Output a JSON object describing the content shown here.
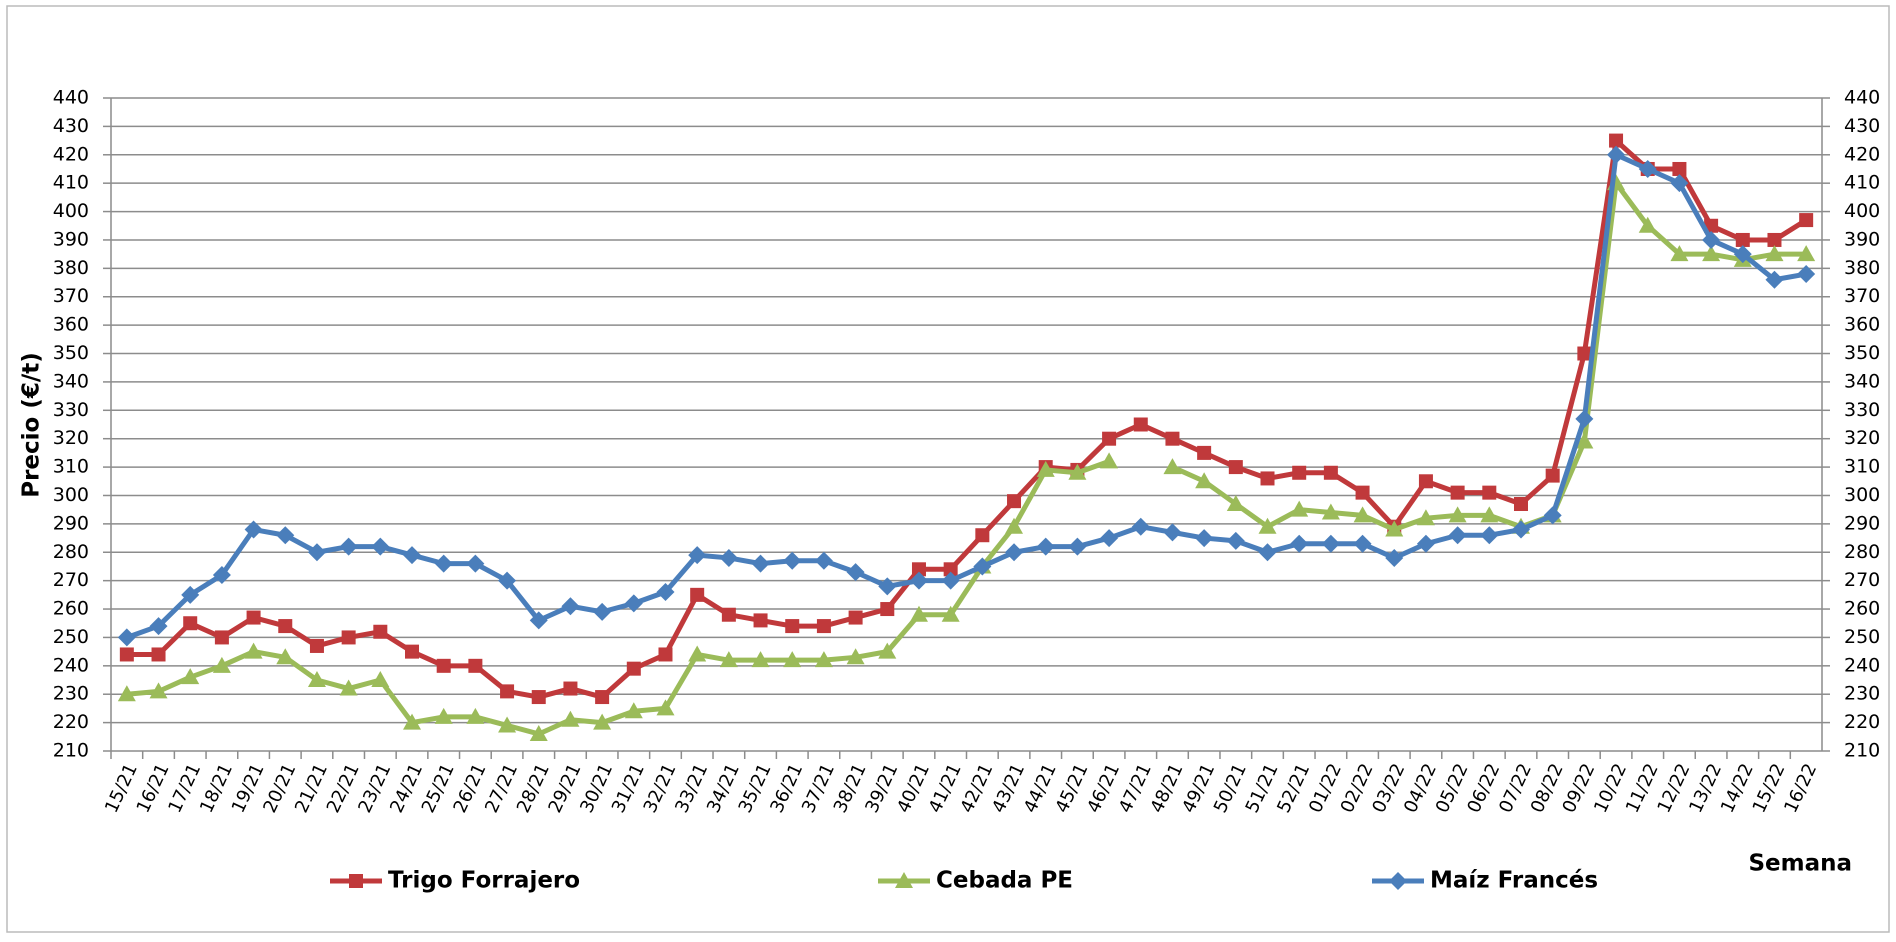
{
  "chart_data": {
    "type": "line",
    "y_label": "Precio (€/t)",
    "x_label": "Semana",
    "categories": [
      "15/21",
      "16/21",
      "17/21",
      "18/21",
      "19/21",
      "20/21",
      "21/21",
      "22/21",
      "23/21",
      "24/21",
      "25/21",
      "26/21",
      "27/21",
      "28/21",
      "29/21",
      "30/21",
      "31/21",
      "32/21",
      "33/21",
      "34/21",
      "35/21",
      "36/21",
      "37/21",
      "38/21",
      "39/21",
      "40/21",
      "41/21",
      "42/21",
      "43/21",
      "44/21",
      "45/21",
      "46/21",
      "47/21",
      "48/21",
      "49/21",
      "50/21",
      "51/21",
      "52/21",
      "01/22",
      "02/22",
      "03/22",
      "04/22",
      "05/22",
      "06/22",
      "07/22",
      "08/22",
      "09/22",
      "10/22",
      "11/22",
      "12/22",
      "13/22",
      "14/22",
      "15/22",
      "16/22"
    ],
    "series": [
      {
        "name": "Trigo Forrajero",
        "color": "#c0393b",
        "marker": "square",
        "values": [
          244,
          244,
          255,
          250,
          257,
          254,
          247,
          250,
          252,
          245,
          240,
          240,
          231,
          229,
          232,
          229,
          239,
          244,
          265,
          258,
          256,
          254,
          254,
          257,
          260,
          274,
          274,
          286,
          298,
          310,
          309,
          320,
          325,
          320,
          315,
          310,
          306,
          308,
          308,
          301,
          289,
          305,
          301,
          301,
          297,
          307,
          350,
          425,
          415,
          415,
          395,
          390,
          390,
          397
        ]
      },
      {
        "name": "Cebada PE",
        "color": "#9bbb59",
        "marker": "triangle",
        "values": [
          230,
          231,
          236,
          240,
          245,
          243,
          235,
          232,
          235,
          220,
          222,
          222,
          219,
          216,
          221,
          220,
          224,
          225,
          244,
          242,
          242,
          242,
          242,
          243,
          245,
          258,
          258,
          275,
          289,
          309,
          308,
          312,
          null,
          310,
          305,
          297,
          289,
          295,
          294,
          293,
          288,
          292,
          293,
          293,
          289,
          293,
          319,
          410,
          395,
          385,
          385,
          383,
          385,
          385
        ]
      },
      {
        "name": "Maíz Francés",
        "color": "#4a7ebb",
        "marker": "diamond",
        "values": [
          250,
          254,
          265,
          272,
          288,
          286,
          280,
          282,
          282,
          279,
          276,
          276,
          270,
          256,
          261,
          259,
          262,
          266,
          279,
          278,
          276,
          277,
          277,
          273,
          268,
          270,
          270,
          275,
          280,
          282,
          282,
          285,
          289,
          287,
          285,
          284,
          280,
          283,
          283,
          283,
          278,
          283,
          286,
          286,
          288,
          293,
          327,
          420,
          415,
          410,
          390,
          385,
          376,
          378
        ]
      }
    ],
    "ylim": [
      210,
      440
    ],
    "yticks": [
      210,
      220,
      230,
      240,
      250,
      260,
      270,
      280,
      290,
      300,
      310,
      320,
      330,
      340,
      350,
      360,
      370,
      380,
      390,
      400,
      410,
      420,
      430,
      440
    ],
    "y2lim": [
      210,
      440
    ],
    "y2ticks": [
      210,
      220,
      230,
      240,
      250,
      260,
      270,
      280,
      290,
      300,
      310,
      320,
      330,
      340,
      350,
      360,
      370,
      380,
      390,
      400,
      410,
      420,
      430,
      440
    ],
    "grid": true
  }
}
